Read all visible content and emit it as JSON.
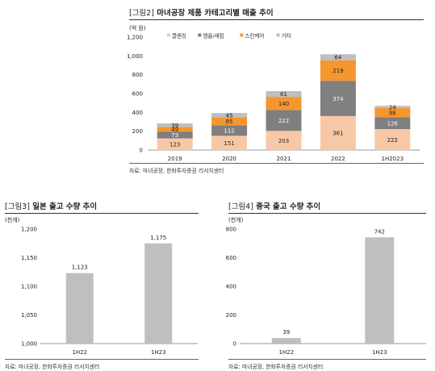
{
  "figure2": {
    "tag": "[그림2]",
    "title": "마녀공장 제품 카테고리별 매출 추이",
    "unit": "(억 원)",
    "source": "자료: 마녀공장, 한화투자증권 리서치센터",
    "chart_data": {
      "type": "bar",
      "stacked": true,
      "categories": [
        "2019",
        "2020",
        "2021",
        "2022",
        "1H2023"
      ],
      "series": [
        {
          "name": "클렌징",
          "color": "#f8c8a6",
          "values": [
            123,
            151,
            203,
            361,
            222
          ]
        },
        {
          "name": "앰플/세럼",
          "color": "#7f7f7f",
          "values": [
            73,
            112,
            222,
            374,
            126
          ]
        },
        {
          "name": "스킨케어",
          "color": "#f5962f",
          "values": [
            49,
            85,
            140,
            219,
            98
          ]
        },
        {
          "name": "기타",
          "color": "#bfbfbf",
          "values": [
            39,
            45,
            61,
            64,
            24
          ]
        }
      ],
      "ylim": [
        0,
        1200
      ],
      "yticks": [
        "0",
        "200",
        "400",
        "600",
        "800",
        "1,000",
        "1,200"
      ],
      "legend_position": "top-left"
    }
  },
  "figure3": {
    "tag": "[그림3]",
    "title": "일본 출고 수량 추이",
    "unit": "(천개)",
    "source": "자료: 마녀공장, 한화투자증권 리서치센터",
    "chart_data": {
      "type": "bar",
      "categories": [
        "1H22",
        "1H23"
      ],
      "values": [
        1123,
        1175
      ],
      "labels": [
        "1,123",
        "1,175"
      ],
      "color": "#bfbfbf",
      "ylim": [
        1000,
        1200
      ],
      "yticks": [
        "1,000",
        "1,050",
        "1,100",
        "1,150",
        "1,200"
      ]
    }
  },
  "figure4": {
    "tag": "[그림4]",
    "title": "중국 출고 수량 추이",
    "unit": "(천개)",
    "source": "자료: 마녀공장, 한화투자증권 리서치센터",
    "chart_data": {
      "type": "bar",
      "categories": [
        "1H22",
        "1H23"
      ],
      "values": [
        39,
        742
      ],
      "labels": [
        "39",
        "742"
      ],
      "color": "#bfbfbf",
      "ylim": [
        0,
        800
      ],
      "yticks": [
        "0",
        "200",
        "400",
        "600",
        "800"
      ]
    }
  }
}
